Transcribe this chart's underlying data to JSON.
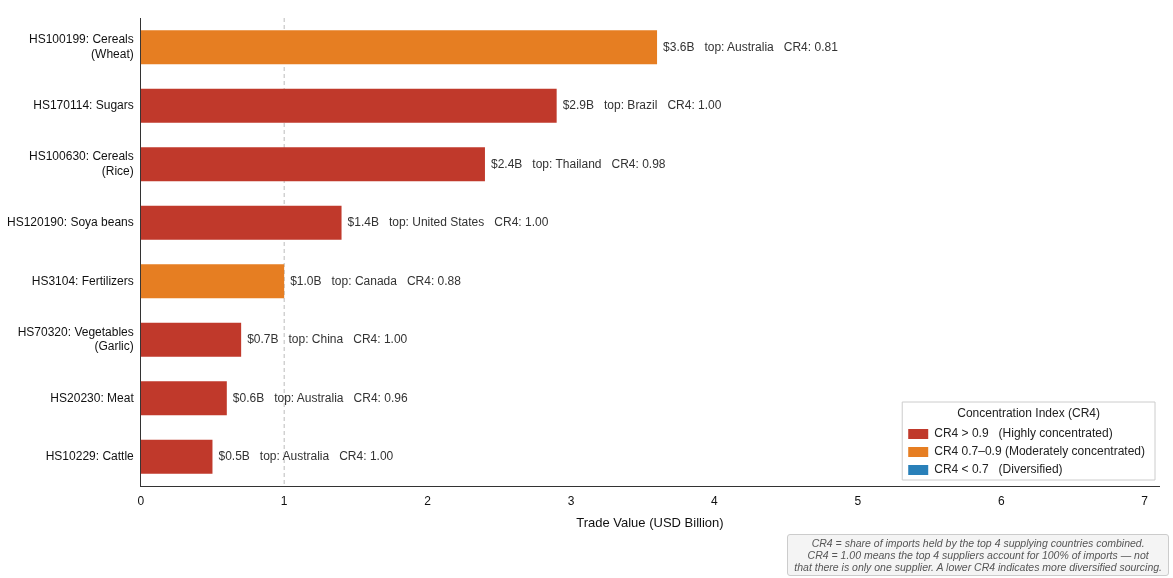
{
  "chart_data": {
    "type": "bar",
    "orientation": "horizontal",
    "stacked": true,
    "categories": [
      "HS100199: Cereals\n(Wheat)",
      "HS170114: Sugars",
      "HS100630: Cereals\n(Rice)",
      "HS120190: Soya beans",
      "HS3104: Fertilizers",
      "HS70320: Vegetables\n(Garlic)",
      "HS20230: Meat",
      "HS10229: Cattle"
    ],
    "xlabel": "Trade Value (USD Billion)",
    "xlim": [
      0,
      7.1
    ],
    "xticks": [
      0,
      1,
      2,
      3,
      4,
      5,
      6,
      7
    ],
    "legend_title": "Concentration Index (CR4)",
    "legend": "bottom right",
    "grid": false,
    "series": [
      {
        "name": "CR4 > 0.9   (Highly concentrated)",
        "color": "#c0392b",
        "values": [
          null,
          2.9,
          2.4,
          1.4,
          null,
          0.7,
          0.6,
          0.5
        ]
      },
      {
        "name": "CR4 0.7–0.9 (Moderately concentrated)",
        "color": "#e67e22",
        "values": [
          3.6,
          null,
          null,
          null,
          1.0,
          null,
          null,
          null
        ]
      },
      {
        "name": "CR4 < 0.7   (Diversified)",
        "color": "#2980b9",
        "values": [
          null,
          null,
          null,
          null,
          null,
          null,
          null,
          null
        ]
      }
    ],
    "ref_lines": [
      {
        "axis": "x",
        "value": 1,
        "color": "#bbbbbb",
        "line_style": "dashed"
      }
    ],
    "annotations": [
      {
        "text": "$3.6B   top: Australia   CR4: 0.81",
        "x": 3.6,
        "y": "HS100199: Cereals\n(Wheat)"
      },
      {
        "text": "$2.9B   top: Brazil   CR4: 1.00",
        "x": 2.9,
        "y": "HS170114: Sugars"
      },
      {
        "text": "$2.4B   top: Thailand   CR4: 0.98",
        "x": 2.4,
        "y": "HS100630: Cereals\n(Rice)"
      },
      {
        "text": "$1.4B   top: United States   CR4: 1.00",
        "x": 1.4,
        "y": "HS120190: Soya beans"
      },
      {
        "text": "$1.0B   top: Canada   CR4: 0.88",
        "x": 1.0,
        "y": "HS3104: Fertilizers"
      },
      {
        "text": "$0.7B   top: China   CR4: 1.00",
        "x": 0.7,
        "y": "HS70320: Vegetables\n(Garlic)"
      },
      {
        "text": "$0.6B   top: Australia   CR4: 0.96",
        "x": 0.6,
        "y": "HS20230: Meat"
      },
      {
        "text": "$0.5B   top: Australia   CR4: 1.00",
        "x": 0.5,
        "y": "HS10229: Cattle"
      },
      "CR4 = share of imports held by the top 4 supplying countries combined.\nCR4 = 1.00 means the top 4 suppliers account for 100% of imports — not\nthat there is only one supplier. A lower CR4 indicates more diversified sourcing."
    ]
  }
}
